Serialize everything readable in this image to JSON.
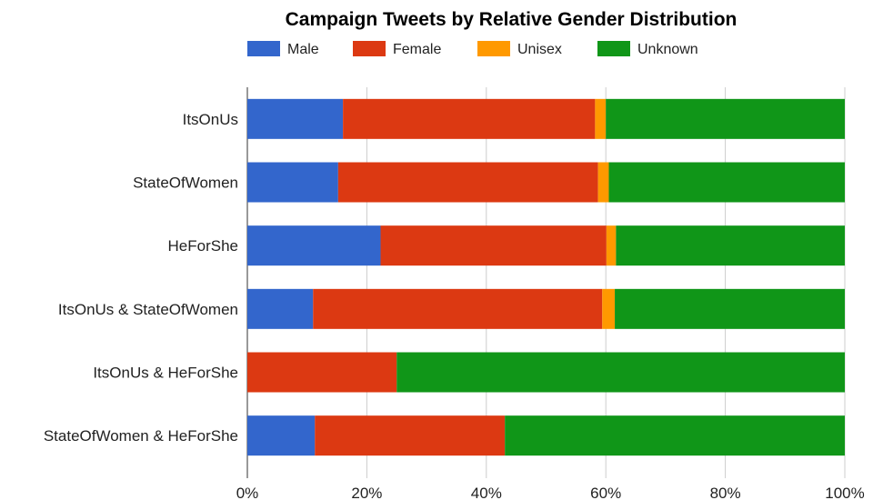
{
  "chart_data": {
    "type": "bar",
    "orientation": "horizontal",
    "stacked": true,
    "title": "Campaign Tweets by Relative Gender Distribution",
    "categories": [
      "ItsOnUs",
      "StateOfWomen",
      "HeForShe",
      "ItsOnUs & StateOfWomen",
      "ItsOnUs & HeForShe",
      "StateOfWomen & HeForShe"
    ],
    "series": [
      {
        "name": "Male",
        "color": "#3366cc",
        "values": [
          16,
          15.2,
          22.3,
          11,
          0,
          11.3
        ]
      },
      {
        "name": "Female",
        "color": "#dc3912",
        "values": [
          42.2,
          43.5,
          37.8,
          48.4,
          25,
          31.8
        ]
      },
      {
        "name": "Unisex",
        "color": "#ff9900",
        "values": [
          1.8,
          1.8,
          1.6,
          2.1,
          0,
          0
        ]
      },
      {
        "name": "Unknown",
        "color": "#109618",
        "values": [
          40,
          39.5,
          38.3,
          38.5,
          75,
          56.9
        ]
      }
    ],
    "xlim": [
      0,
      100
    ],
    "ticks": [
      0,
      20,
      40,
      60,
      80,
      100
    ],
    "tick_labels": [
      "0%",
      "20%",
      "40%",
      "60%",
      "80%",
      "100%"
    ],
    "grid": true,
    "legend_position": "top"
  }
}
